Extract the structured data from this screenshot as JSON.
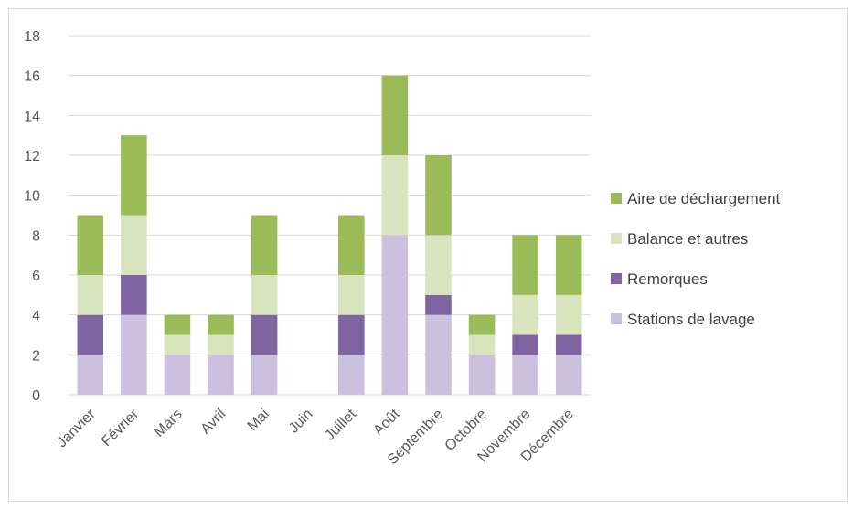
{
  "chart_data": {
    "type": "bar",
    "stacked": true,
    "title": "",
    "xlabel": "",
    "ylabel": "",
    "ylim": [
      0,
      18
    ],
    "yticks": [
      0,
      2,
      4,
      6,
      8,
      10,
      12,
      14,
      16,
      18
    ],
    "grid": true,
    "legend_position": "right",
    "categories": [
      "Janvier",
      "Février",
      "Mars",
      "Avril",
      "Mai",
      "Juin",
      "Juillet",
      "Août",
      "Septembre",
      "Octobre",
      "Novembre",
      "Décembre"
    ],
    "series": [
      {
        "name": "Stations de lavage",
        "color": "#cbc0de",
        "values": [
          2,
          4,
          2,
          2,
          2,
          0,
          2,
          8,
          4,
          2,
          2,
          2
        ]
      },
      {
        "name": "Remorques",
        "color": "#8064a2",
        "values": [
          2,
          2,
          0,
          0,
          2,
          0,
          2,
          0,
          1,
          0,
          1,
          1
        ]
      },
      {
        "name": "Balance et autres",
        "color": "#d7e4bd",
        "values": [
          2,
          3,
          1,
          1,
          2,
          0,
          2,
          4,
          3,
          1,
          2,
          2
        ]
      },
      {
        "name": "Aire de déchargement",
        "color": "#9bbb59",
        "values": [
          3,
          4,
          1,
          1,
          3,
          0,
          3,
          4,
          4,
          1,
          3,
          3
        ]
      }
    ],
    "gridline_color": "#d9d9d9",
    "tick_color": "#595959"
  }
}
